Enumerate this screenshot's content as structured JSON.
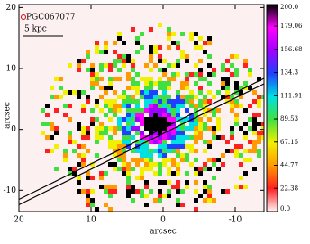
{
  "chart_data": {
    "type": "map",
    "title": "PGC067077",
    "scale_label": "5 kpc",
    "xlabel": "arcsec",
    "ylabel": "arcsec",
    "xlim": [
      20,
      -14
    ],
    "xticks": [
      20,
      10,
      0,
      -10
    ],
    "ylim": [
      -13.5,
      20.5
    ],
    "yticks": [
      -10,
      0,
      10,
      20
    ],
    "colorbar": {
      "lim": [
        0,
        200
      ],
      "ticks": [
        {
          "value": 200,
          "label": "200.0"
        },
        179.06,
        156.68,
        134.3,
        111.91,
        89.53,
        67.15,
        44.77,
        22.38,
        {
          "value": 0,
          "label": "0.0"
        }
      ],
      "colors": [
        "#fff4f4",
        "#ff2020",
        "#ff9a00",
        "#f0f000",
        "#40e040",
        "#00e0e0",
        "#2040ff",
        "#a000ff",
        "#ff00ff",
        "#000000"
      ]
    }
  }
}
